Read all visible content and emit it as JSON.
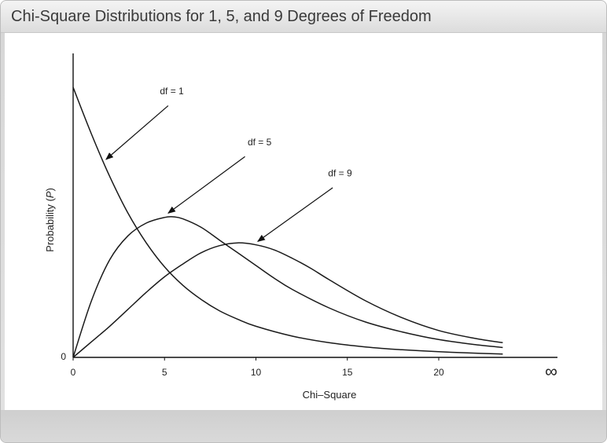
{
  "window": {
    "title": "Chi-Square Distributions for 1, 5, and 9 Degrees of Freedom"
  },
  "chart_data": {
    "type": "line",
    "title": "",
    "xlabel": "Chi–Square",
    "ylabel_prefix": "Probability (",
    "ylabel_var": "P",
    "ylabel_suffix": ")",
    "xlim": [
      0,
      26.5
    ],
    "ylim": [
      0,
      1.0
    ],
    "x_ticks": [
      {
        "value": 0,
        "label": "0"
      },
      {
        "value": 5,
        "label": "5"
      },
      {
        "value": 10,
        "label": "10"
      },
      {
        "value": 15,
        "label": "15"
      },
      {
        "value": 20,
        "label": "20"
      }
    ],
    "x_infinity_label": "∞",
    "y_zero_label": "0",
    "grid": false,
    "legend": "none",
    "series": [
      {
        "label": "df = 1",
        "x": [
          0,
          1,
          2,
          3,
          4,
          5,
          6,
          7,
          8,
          9,
          10,
          12,
          14,
          16,
          18,
          20,
          22,
          23.5
        ],
        "y": [
          0.955,
          0.79,
          0.64,
          0.51,
          0.405,
          0.32,
          0.255,
          0.205,
          0.165,
          0.135,
          0.11,
          0.075,
          0.052,
          0.037,
          0.027,
          0.02,
          0.015,
          0.012
        ]
      },
      {
        "label": "df = 5",
        "x": [
          0,
          1,
          2,
          3,
          4,
          5,
          5.5,
          6,
          7,
          8,
          9,
          10,
          11,
          12,
          14,
          16,
          18,
          20,
          22,
          23.5
        ],
        "y": [
          0,
          0.2,
          0.345,
          0.43,
          0.475,
          0.495,
          0.497,
          0.49,
          0.46,
          0.415,
          0.37,
          0.325,
          0.28,
          0.24,
          0.175,
          0.125,
          0.09,
          0.063,
          0.045,
          0.035
        ]
      },
      {
        "label": "df = 9",
        "x": [
          0,
          1,
          2,
          3,
          4,
          5,
          6,
          7,
          8,
          9,
          10,
          11,
          12,
          13,
          14,
          16,
          18,
          20,
          22,
          23.5
        ],
        "y": [
          0,
          0.055,
          0.11,
          0.17,
          0.23,
          0.285,
          0.33,
          0.37,
          0.395,
          0.405,
          0.398,
          0.38,
          0.35,
          0.315,
          0.275,
          0.2,
          0.14,
          0.095,
          0.067,
          0.052
        ]
      }
    ],
    "annotations": [
      {
        "series": 0,
        "text": "df = 1",
        "label_x": 5.4,
        "label_y": 0.93,
        "arrow_from_x": 5.2,
        "arrow_from_y": 0.89,
        "arrow_to_x": 1.8,
        "arrow_to_y": 0.7
      },
      {
        "series": 1,
        "text": "df = 5",
        "label_x": 10.2,
        "label_y": 0.75,
        "arrow_from_x": 9.4,
        "arrow_from_y": 0.71,
        "arrow_to_x": 5.2,
        "arrow_to_y": 0.51
      },
      {
        "series": 2,
        "text": "df = 9",
        "label_x": 14.6,
        "label_y": 0.64,
        "arrow_from_x": 14.2,
        "arrow_from_y": 0.6,
        "arrow_to_x": 10.1,
        "arrow_to_y": 0.41
      }
    ]
  }
}
